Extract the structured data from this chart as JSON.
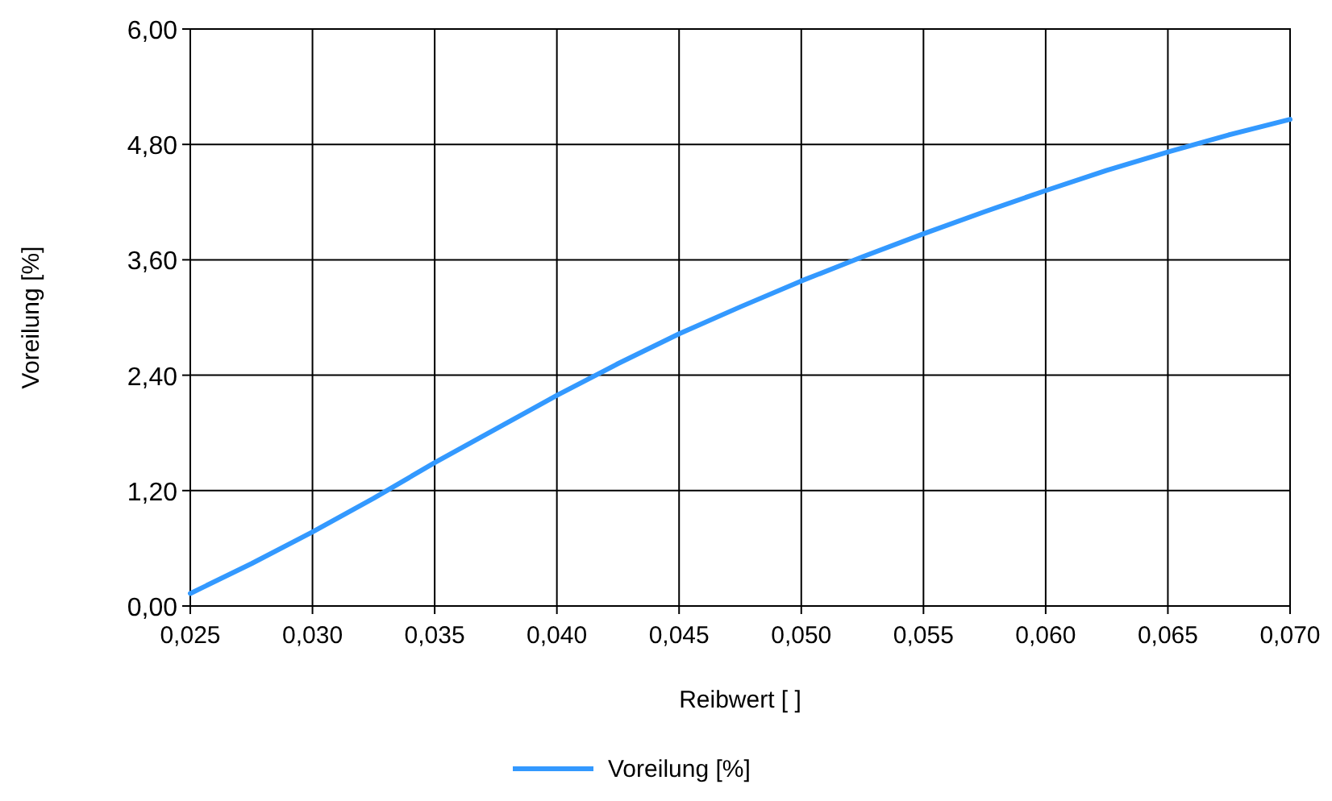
{
  "chart_data": {
    "type": "line",
    "xlabel": "Reibwert [ ]",
    "ylabel": "Voreilung [%]",
    "x": [
      0.025,
      0.0275,
      0.03,
      0.0325,
      0.035,
      0.0375,
      0.04,
      0.0425,
      0.045,
      0.0475,
      0.05,
      0.0525,
      0.055,
      0.0575,
      0.06,
      0.0625,
      0.065,
      0.0675,
      0.07
    ],
    "series": [
      {
        "name": "Voreilung [%]",
        "color": "#3399ff",
        "values": [
          0.13,
          0.44,
          0.77,
          1.12,
          1.49,
          1.84,
          2.19,
          2.52,
          2.83,
          3.11,
          3.38,
          3.63,
          3.87,
          4.1,
          4.32,
          4.53,
          4.72,
          4.9,
          5.06
        ]
      }
    ],
    "xlim": [
      0.025,
      0.07
    ],
    "xticks": [
      {
        "value": 0.025,
        "label": "0,025"
      },
      {
        "value": 0.03,
        "label": "0,030"
      },
      {
        "value": 0.035,
        "label": "0,035"
      },
      {
        "value": 0.04,
        "label": "0,040"
      },
      {
        "value": 0.045,
        "label": "0,045"
      },
      {
        "value": 0.05,
        "label": "0,050"
      },
      {
        "value": 0.055,
        "label": "0,055"
      },
      {
        "value": 0.06,
        "label": "0,060"
      },
      {
        "value": 0.065,
        "label": "0,065"
      },
      {
        "value": 0.07,
        "label": "0,070"
      }
    ],
    "ylim": [
      0,
      6
    ],
    "yticks": [
      {
        "value": 0,
        "label": "0,00"
      },
      {
        "value": 1.2,
        "label": "1,20"
      },
      {
        "value": 2.4,
        "label": "2,40"
      },
      {
        "value": 3.6,
        "label": "3,60"
      },
      {
        "value": 4.8,
        "label": "4,80"
      },
      {
        "value": 6,
        "label": "6,00"
      }
    ],
    "grid": true,
    "legend": "bottom",
    "marker": "none",
    "line_style": "solid"
  }
}
